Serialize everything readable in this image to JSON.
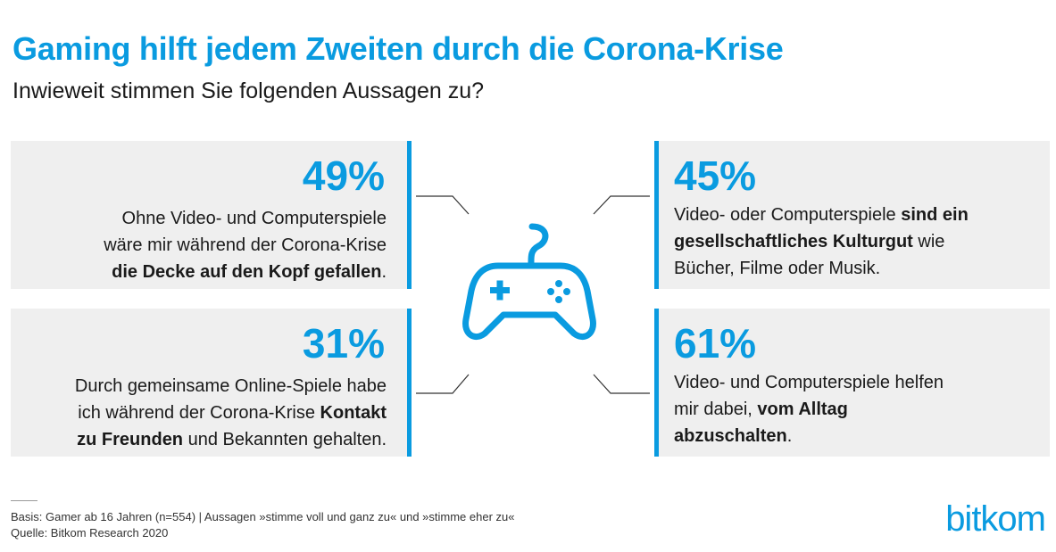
{
  "header": {
    "title": "Gaming hilft jedem Zweiten durch die Corona-Krise",
    "subtitle": "Inwieweit stimmen Sie folgenden Aussagen zu?"
  },
  "colors": {
    "accent": "#0a9be0",
    "card_bg": "#efefef",
    "text": "#1a1a1a"
  },
  "chart_data": {
    "type": "table",
    "title": "Gaming hilft jedem Zweiten durch die Corona-Krise",
    "subtitle": "Inwieweit stimmen Sie folgenden Aussagen zu?",
    "items": [
      {
        "value": 49,
        "label": "49%",
        "statement": "Ohne Video- und Computerspiele wäre mir während der Corona-Krise die Decke auf den Kopf gefallen.",
        "lines": [
          [
            {
              "t": "Ohne Video- und Computerspiele",
              "b": false
            }
          ],
          [
            {
              "t": "wäre mir während der Corona-Krise",
              "b": false
            }
          ],
          [
            {
              "t": "die Decke auf den Kopf gefallen",
              "b": true
            },
            {
              "t": ".",
              "b": false
            }
          ]
        ]
      },
      {
        "value": 45,
        "label": "45%",
        "statement": "Video- oder Computerspiele sind ein gesellschaftliches Kulturgut wie Bücher, Filme oder Musik.",
        "lines": [
          [
            {
              "t": "Video- oder Computerspiele ",
              "b": false
            },
            {
              "t": "sind ein",
              "b": true
            }
          ],
          [
            {
              "t": "gesellschaftliches Kulturgut",
              "b": true
            },
            {
              "t": " wie",
              "b": false
            }
          ],
          [
            {
              "t": "Bücher, Filme oder Musik.",
              "b": false
            }
          ]
        ]
      },
      {
        "value": 31,
        "label": "31%",
        "statement": "Durch gemeinsame Online-Spiele habe ich während der Corona-Krise Kontakt zu Freunden und Bekannten gehalten.",
        "lines": [
          [
            {
              "t": "Durch gemeinsame Online-Spiele habe",
              "b": false
            }
          ],
          [
            {
              "t": "ich während der Corona-Krise ",
              "b": false
            },
            {
              "t": "Kontakt",
              "b": true
            }
          ],
          [
            {
              "t": "zu Freunden",
              "b": true
            },
            {
              "t": " und Bekannten gehalten.",
              "b": false
            }
          ]
        ]
      },
      {
        "value": 61,
        "label": "61%",
        "statement": "Video- und Computerspiele helfen mir dabei, vom Alltag abzuschalten.",
        "lines": [
          [
            {
              "t": "Video- und Computerspiele helfen",
              "b": false
            }
          ],
          [
            {
              "t": "mir dabei, ",
              "b": false
            },
            {
              "t": "vom Alltag",
              "b": true
            }
          ],
          [
            {
              "t": "abzuschalten",
              "b": true
            },
            {
              "t": ".",
              "b": false
            }
          ]
        ]
      }
    ]
  },
  "icons": {
    "center": "gamepad-icon"
  },
  "footer": {
    "basis": "Basis: Gamer ab 16 Jahren (n=554) | Aussagen »stimme voll und ganz zu« und »stimme eher zu«",
    "source": "Quelle: Bitkom Research 2020"
  },
  "logo": {
    "text": "bitkom"
  }
}
